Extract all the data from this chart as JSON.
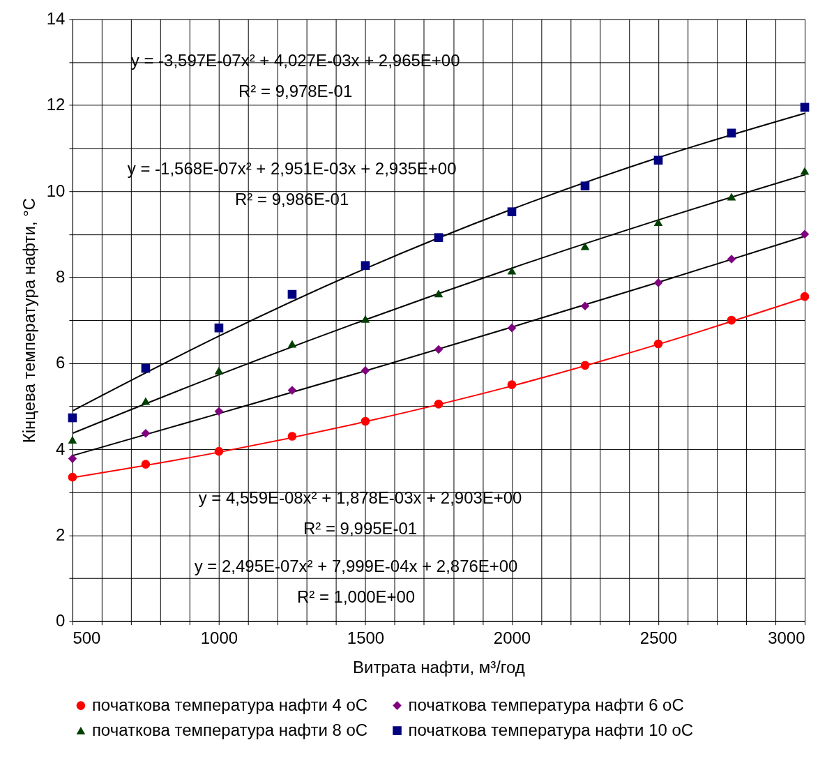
{
  "chart_data": {
    "type": "scatter",
    "xlabel": "Витрата нафти, м³/год",
    "ylabel": "Кінцева температура нафти, °C",
    "x": [
      500,
      750,
      1000,
      1250,
      1500,
      1750,
      2000,
      2250,
      2500,
      2750,
      3000
    ],
    "series": [
      {
        "name": "початкова температура нафти 4 оС",
        "color": "#ff0000",
        "marker": "circle",
        "values": [
          3.35,
          3.65,
          3.95,
          4.3,
          4.65,
          5.05,
          5.5,
          5.95,
          6.45,
          7.0,
          7.55
        ]
      },
      {
        "name": "початкова температура нафти 6 оС",
        "color": "#800080",
        "marker": "diamond",
        "values": [
          3.78,
          4.37,
          4.88,
          5.37,
          5.83,
          6.32,
          6.82,
          7.33,
          7.87,
          8.42,
          9.0
        ]
      },
      {
        "name": "початкова температура нафти 8 оС",
        "color": "#004000",
        "marker": "triangle",
        "values": [
          4.22,
          5.12,
          5.83,
          6.45,
          7.03,
          7.62,
          8.15,
          8.72,
          9.28,
          9.87,
          10.47
        ]
      },
      {
        "name": "початкова температура нафти 10 оС",
        "color": "#000080",
        "marker": "square",
        "values": [
          4.73,
          5.88,
          6.82,
          7.6,
          8.27,
          8.92,
          9.52,
          10.12,
          10.72,
          11.35,
          11.95
        ]
      },
      {
        "type": "line",
        "color": "#ff0000",
        "x": [
          500,
          1000,
          1500,
          2000,
          2500,
          3000
        ],
        "values": [
          3.34,
          3.93,
          4.64,
          5.47,
          6.44,
          7.52
        ]
      },
      {
        "type": "line",
        "color": "#000000",
        "x": [
          500,
          1000,
          1500,
          2000,
          2500,
          3000
        ],
        "values": [
          3.85,
          4.83,
          5.82,
          6.84,
          7.88,
          8.95
        ]
      },
      {
        "type": "line",
        "color": "#000000",
        "x": [
          500,
          1000,
          1500,
          2000,
          2500,
          3000
        ],
        "values": [
          4.37,
          5.73,
          7.01,
          8.21,
          9.33,
          10.38
        ]
      },
      {
        "type": "line",
        "color": "#000000",
        "x": [
          500,
          1000,
          1500,
          2000,
          2500,
          3000
        ],
        "values": [
          4.89,
          6.63,
          8.2,
          9.58,
          10.78,
          11.81
        ]
      }
    ],
    "annotations": [
      "y = -3,597E-07x² + 4,027E-03x + 2,965E+00\nR² = 9,978E-01",
      "y = -1,568E-07x² + 2,951E-03x + 2,935E+00\nR² = 9,986E-01",
      "y = 4,559E-08x² + 1,878E-03x + 2,903E+00\nR² = 9,995E-01",
      "y = 2,495E-07x² + 7,999E-04x + 2,876E+00\nR² = 1,000E+00"
    ],
    "xlim": [
      500,
      3000
    ],
    "xticks": [
      500,
      {
        "value": 600,
        "label": null
      },
      {
        "value": 700,
        "label": null
      },
      {
        "value": 800,
        "label": null
      },
      {
        "value": 900,
        "label": null
      },
      1000,
      {
        "value": 1100,
        "label": null
      },
      {
        "value": 1200,
        "label": null
      },
      {
        "value": 1300,
        "label": null
      },
      {
        "value": 1400,
        "label": null
      },
      1500,
      {
        "value": 1600,
        "label": null
      },
      {
        "value": 1700,
        "label": null
      },
      {
        "value": 1800,
        "label": null
      },
      {
        "value": 1900,
        "label": null
      },
      2000,
      {
        "value": 2100,
        "label": null
      },
      {
        "value": 2200,
        "label": null
      },
      {
        "value": 2300,
        "label": null
      },
      {
        "value": 2400,
        "label": null
      },
      2500,
      {
        "value": 2600,
        "label": null
      },
      {
        "value": 2700,
        "label": null
      },
      {
        "value": 2800,
        "label": null
      },
      {
        "value": 2900,
        "label": null
      },
      3000
    ],
    "ylim": [
      0,
      14
    ],
    "yticks": [
      0,
      {
        "value": 1,
        "label": null
      },
      2,
      {
        "value": 3,
        "label": null
      },
      4,
      {
        "value": 5,
        "label": null
      },
      6,
      {
        "value": 7,
        "label": null
      },
      8,
      {
        "value": 9,
        "label": null
      },
      10,
      {
        "value": 11,
        "label": null
      },
      12,
      {
        "value": 13,
        "label": null
      },
      14
    ],
    "grid": true,
    "legend": "bottom"
  }
}
